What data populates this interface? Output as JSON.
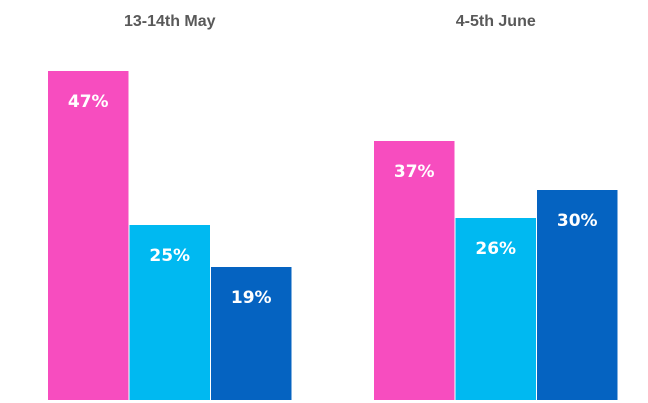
{
  "chart_data": {
    "type": "bar",
    "categories": [
      "13-14th May",
      "4-5th June"
    ],
    "series": [
      {
        "color": "#f74dbf",
        "values": [
          47,
          37
        ],
        "value_labels": [
          "47%",
          "37%"
        ]
      },
      {
        "color": "#00b9f1",
        "values": [
          25,
          26
        ],
        "value_labels": [
          "25%",
          "26%"
        ]
      },
      {
        "color": "#0563c1",
        "values": [
          19,
          30
        ],
        "value_labels": [
          "19%",
          "30%"
        ]
      }
    ]
  }
}
